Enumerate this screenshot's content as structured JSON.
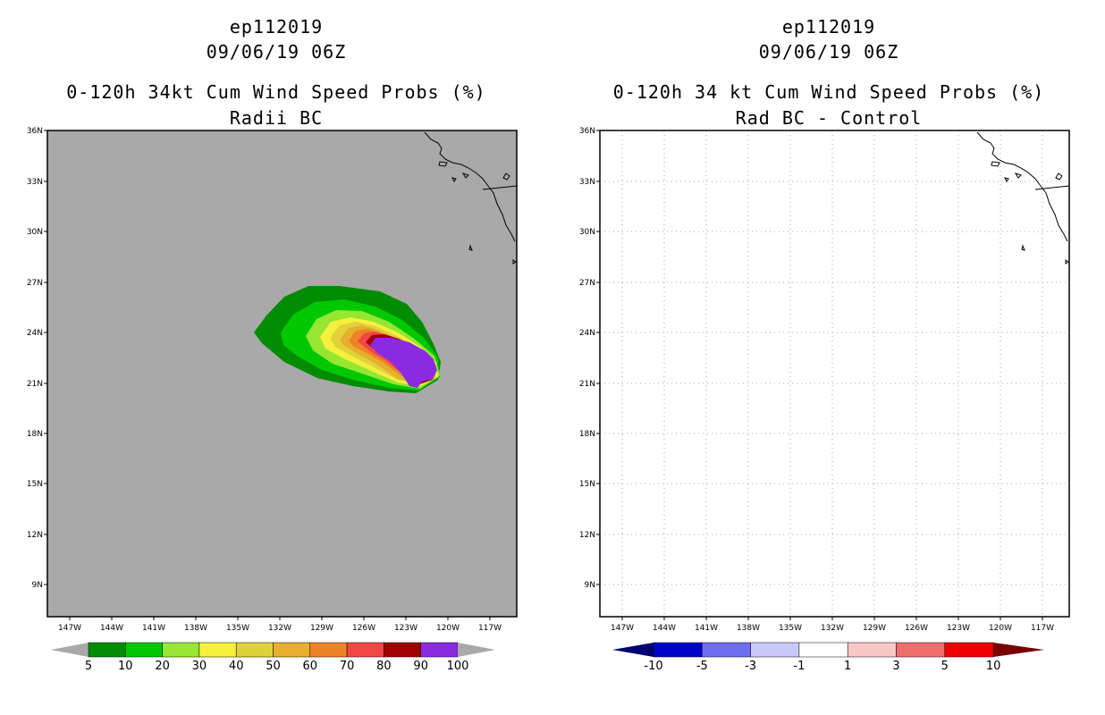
{
  "left": {
    "storm_id": "ep112019",
    "datetime": "09/06/19 06Z",
    "title": "0-120h 34kt Cum Wind Speed Probs (%)",
    "subtitle": "Radii BC",
    "colorbar": {
      "labels": [
        "5",
        "10",
        "20",
        "30",
        "40",
        "50",
        "60",
        "70",
        "80",
        "90",
        "100"
      ],
      "colors": [
        "#008c00",
        "#00c800",
        "#96e632",
        "#f5f03c",
        "#e1d23c",
        "#e6af2d",
        "#f08228",
        "#f04646",
        "#a00000",
        "#8a2be2"
      ],
      "end_color": "#a9a9a9"
    }
  },
  "right": {
    "storm_id": "ep112019",
    "datetime": "09/06/19 06Z",
    "title": "0-120h 34 kt Cum Wind Speed Probs (%)",
    "subtitle": "Rad BC - Control",
    "colorbar": {
      "labels": [
        "-10",
        "-5",
        "-3",
        "-1",
        "1",
        "3",
        "5",
        "10"
      ],
      "colors": [
        "#0000c8",
        "#6e6ef0",
        "#c8c8fa",
        "#ffffff",
        "#fac8c8",
        "#f06e6e",
        "#f00000"
      ],
      "low_color": "#000070",
      "high_color": "#780000"
    }
  },
  "map": {
    "lat_labels": [
      "36N",
      "33N",
      "30N",
      "27N",
      "24N",
      "21N",
      "18N",
      "15N",
      "12N",
      "9N"
    ],
    "lon_labels": [
      "147W",
      "144W",
      "141W",
      "138W",
      "135W",
      "132W",
      "129W",
      "126W",
      "123W",
      "120W",
      "117W"
    ],
    "background_color": "#a9a9a9",
    "grid": true
  }
}
